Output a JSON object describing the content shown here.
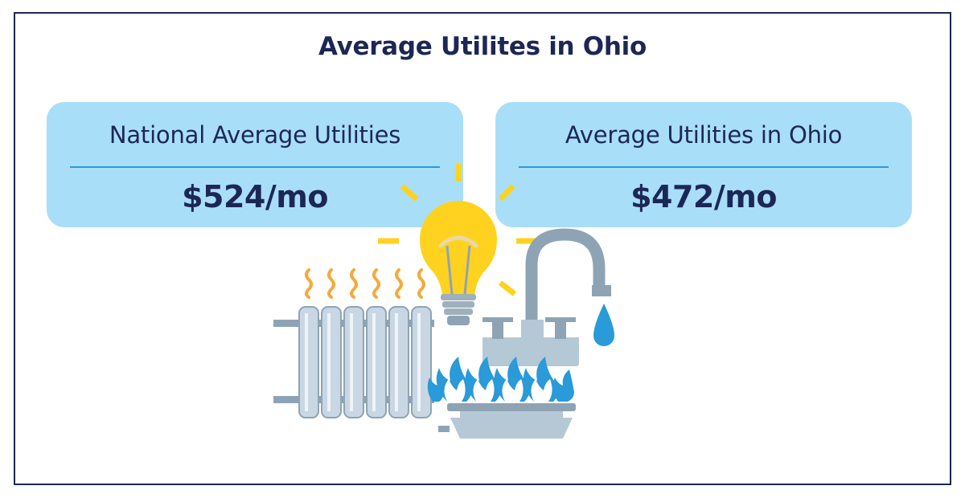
{
  "title": "Average Utilites in Ohio",
  "cards": [
    {
      "label": "National Average Utilities",
      "value": "$524/mo"
    },
    {
      "label": "Average Utilities in Ohio",
      "value": "$472/mo"
    }
  ],
  "illustration": {
    "icons": [
      "radiator-icon",
      "heat-wave-icon",
      "light-bulb-icon",
      "faucet-icon",
      "water-drop-icon",
      "gas-burner-icon",
      "flame-icon"
    ]
  },
  "colors": {
    "text": "#1c2755",
    "card": "#a9def8",
    "divider": "#2a9ad8",
    "frame": "#1c2755",
    "bulb": "#ffd21f",
    "flame": "#2a9ad8",
    "heat": "#f5a93c",
    "metal": "#b5c8d6"
  }
}
